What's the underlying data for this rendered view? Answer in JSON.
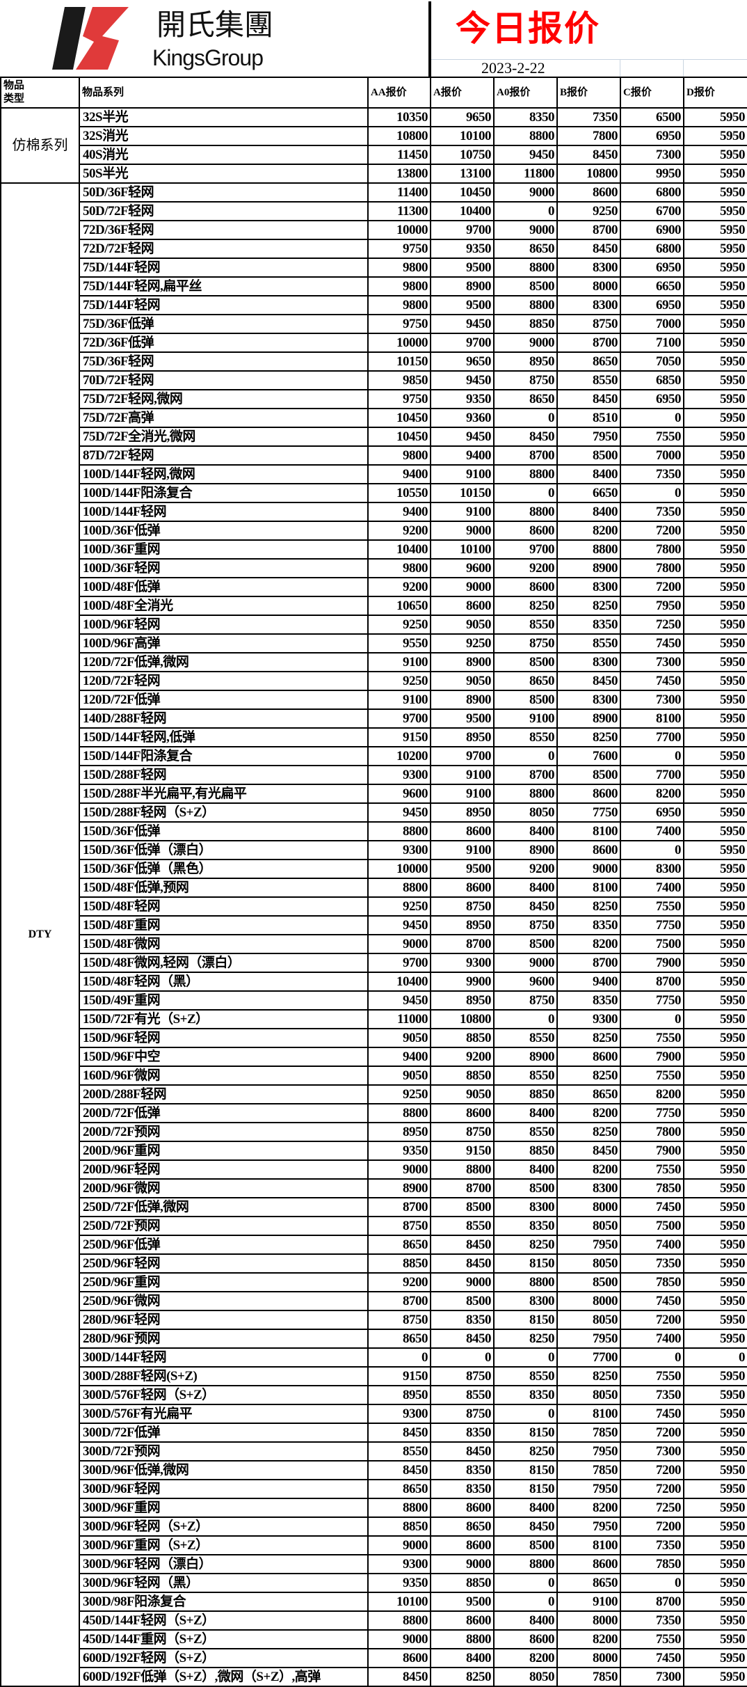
{
  "header": {
    "logo_cn": "開氏集團",
    "logo_en": "KingsGroup",
    "title": "今日报价",
    "date": "2023-2-22",
    "colors": {
      "title": "#ff0000",
      "logo_red": "#e03a3a",
      "logo_black": "#1a1a1a"
    }
  },
  "columns": {
    "type": "物品类型",
    "type_line1": "物品",
    "type_line2": "类型",
    "series": "物品系列",
    "prices": [
      "AA报价",
      "A报价",
      "A0报价",
      "B报价",
      "C报价",
      "D报价"
    ]
  },
  "groups": [
    {
      "category": "仿棉系列",
      "rows": [
        {
          "name": "32S半光",
          "prices": [
            10350,
            9650,
            8350,
            7350,
            6500,
            5950
          ]
        },
        {
          "name": "32S消光",
          "prices": [
            10800,
            10100,
            8800,
            7800,
            6950,
            5950
          ]
        },
        {
          "name": "40S消光",
          "prices": [
            11450,
            10750,
            9450,
            8450,
            7300,
            5950
          ]
        },
        {
          "name": "50S半光",
          "prices": [
            13800,
            13100,
            11800,
            10800,
            9950,
            5950
          ]
        }
      ]
    },
    {
      "category": "DTY",
      "rows": [
        {
          "name": "50D/36F轻网",
          "prices": [
            11400,
            10450,
            9000,
            8600,
            6800,
            5950
          ]
        },
        {
          "name": "50D/72F轻网",
          "prices": [
            11300,
            10400,
            0,
            9250,
            6700,
            5950
          ]
        },
        {
          "name": "72D/36F轻网",
          "prices": [
            10000,
            9700,
            9000,
            8700,
            6900,
            5950
          ]
        },
        {
          "name": "72D/72F轻网",
          "prices": [
            9750,
            9350,
            8650,
            8450,
            6800,
            5950
          ]
        },
        {
          "name": "75D/144F轻网",
          "prices": [
            9800,
            9500,
            8800,
            8300,
            6950,
            5950
          ]
        },
        {
          "name": "75D/144F轻网,扁平丝",
          "prices": [
            9800,
            8900,
            8500,
            8000,
            6650,
            5950
          ]
        },
        {
          "name": "75D/144F轻网",
          "prices": [
            9800,
            9500,
            8800,
            8300,
            6950,
            5950
          ]
        },
        {
          "name": "75D/36F低弹",
          "prices": [
            9750,
            9450,
            8850,
            8750,
            7000,
            5950
          ]
        },
        {
          "name": "72D/36F低弹",
          "prices": [
            10000,
            9700,
            9000,
            8700,
            7100,
            5950
          ]
        },
        {
          "name": "75D/36F轻网",
          "prices": [
            10150,
            9650,
            8950,
            8650,
            7050,
            5950
          ]
        },
        {
          "name": "70D/72F轻网",
          "prices": [
            9850,
            9450,
            8750,
            8550,
            6850,
            5950
          ]
        },
        {
          "name": "75D/72F轻网,微网",
          "prices": [
            9750,
            9350,
            8650,
            8450,
            6950,
            5950
          ]
        },
        {
          "name": "75D/72F高弹",
          "prices": [
            10450,
            9360,
            0,
            8510,
            0,
            5950
          ]
        },
        {
          "name": "75D/72F全消光,微网",
          "prices": [
            10450,
            9450,
            8450,
            7950,
            7550,
            5950
          ]
        },
        {
          "name": "87D/72F轻网",
          "prices": [
            9800,
            9400,
            8700,
            8500,
            7000,
            5950
          ]
        },
        {
          "name": "100D/144F轻网,微网",
          "prices": [
            9400,
            9100,
            8800,
            8400,
            7350,
            5950
          ]
        },
        {
          "name": "100D/144F阳涤复合",
          "prices": [
            10550,
            10150,
            0,
            6650,
            0,
            5950
          ]
        },
        {
          "name": "100D/144F轻网",
          "prices": [
            9400,
            9100,
            8800,
            8400,
            7350,
            5950
          ]
        },
        {
          "name": "100D/36F低弹",
          "prices": [
            9200,
            9000,
            8600,
            8200,
            7200,
            5950
          ]
        },
        {
          "name": "100D/36F重网",
          "prices": [
            10400,
            10100,
            9700,
            8800,
            7800,
            5950
          ]
        },
        {
          "name": "100D/36F轻网",
          "prices": [
            9800,
            9600,
            9200,
            8900,
            7800,
            5950
          ]
        },
        {
          "name": "100D/48F低弹",
          "prices": [
            9200,
            9000,
            8600,
            8300,
            7200,
            5950
          ]
        },
        {
          "name": "100D/48F全消光",
          "prices": [
            10650,
            8600,
            8250,
            8250,
            7950,
            5950
          ]
        },
        {
          "name": "100D/96F轻网",
          "prices": [
            9250,
            9050,
            8550,
            8350,
            7250,
            5950
          ]
        },
        {
          "name": "100D/96F高弹",
          "prices": [
            9550,
            9250,
            8750,
            8550,
            7450,
            5950
          ]
        },
        {
          "name": "120D/72F低弹,微网",
          "prices": [
            9100,
            8900,
            8500,
            8300,
            7300,
            5950
          ]
        },
        {
          "name": "120D/72F轻网",
          "prices": [
            9250,
            9050,
            8650,
            8450,
            7450,
            5950
          ]
        },
        {
          "name": "120D/72F低弹",
          "prices": [
            9100,
            8900,
            8500,
            8300,
            7300,
            5950
          ]
        },
        {
          "name": "140D/288F轻网",
          "prices": [
            9700,
            9500,
            9100,
            8900,
            8100,
            5950
          ]
        },
        {
          "name": "150D/144F轻网,低弹",
          "prices": [
            9150,
            8950,
            8550,
            8250,
            7700,
            5950
          ]
        },
        {
          "name": "150D/144F阳涤复合",
          "prices": [
            10200,
            9700,
            0,
            7600,
            0,
            5950
          ]
        },
        {
          "name": "150D/288F轻网",
          "prices": [
            9300,
            9100,
            8700,
            8500,
            7700,
            5950
          ]
        },
        {
          "name": "150D/288F半光扁平,有光扁平",
          "prices": [
            9600,
            9100,
            8800,
            8600,
            8200,
            5950
          ]
        },
        {
          "name": "150D/288F轻网（S+Z）",
          "prices": [
            9450,
            8950,
            8050,
            7750,
            6950,
            5950
          ]
        },
        {
          "name": "150D/36F低弹",
          "prices": [
            8800,
            8600,
            8400,
            8100,
            7400,
            5950
          ]
        },
        {
          "name": "150D/36F低弹（漂白）",
          "prices": [
            9300,
            9100,
            8900,
            8600,
            0,
            5950
          ]
        },
        {
          "name": "150D/36F低弹（黑色）",
          "prices": [
            10000,
            9500,
            9200,
            9000,
            8300,
            5950
          ]
        },
        {
          "name": "150D/48F低弹,预网",
          "prices": [
            8800,
            8600,
            8400,
            8100,
            7400,
            5950
          ]
        },
        {
          "name": "150D/48F轻网",
          "prices": [
            9250,
            8750,
            8450,
            8250,
            7550,
            5950
          ]
        },
        {
          "name": "150D/48F重网",
          "prices": [
            9450,
            8950,
            8750,
            8350,
            7750,
            5950
          ]
        },
        {
          "name": "150D/48F微网",
          "prices": [
            9000,
            8700,
            8500,
            8200,
            7500,
            5950
          ]
        },
        {
          "name": "150D/48F微网,轻网（漂白）",
          "prices": [
            9700,
            9300,
            9000,
            8700,
            7900,
            5950
          ]
        },
        {
          "name": "150D/48F轻网（黑）",
          "prices": [
            10400,
            9900,
            9600,
            9400,
            8700,
            5950
          ]
        },
        {
          "name": "150D/49F重网",
          "prices": [
            9450,
            8950,
            8750,
            8350,
            7750,
            5950
          ]
        },
        {
          "name": "150D/72F有光（S+Z）",
          "prices": [
            11000,
            10800,
            0,
            9300,
            0,
            5950
          ]
        },
        {
          "name": "150D/96F轻网",
          "prices": [
            9050,
            8850,
            8550,
            8250,
            7550,
            5950
          ]
        },
        {
          "name": "150D/96F中空",
          "prices": [
            9400,
            9200,
            8900,
            8600,
            7900,
            5950
          ]
        },
        {
          "name": "160D/96F微网",
          "prices": [
            9050,
            8850,
            8550,
            8250,
            7550,
            5950
          ]
        },
        {
          "name": "200D/288F轻网",
          "prices": [
            9250,
            9050,
            8850,
            8650,
            8200,
            5950
          ]
        },
        {
          "name": "200D/72F低弹",
          "prices": [
            8800,
            8600,
            8400,
            8200,
            7750,
            5950
          ]
        },
        {
          "name": "200D/72F预网",
          "prices": [
            8950,
            8750,
            8550,
            8250,
            7800,
            5950
          ]
        },
        {
          "name": "200D/96F重网",
          "prices": [
            9350,
            9150,
            8850,
            8450,
            7900,
            5950
          ]
        },
        {
          "name": "200D/96F轻网",
          "prices": [
            9000,
            8800,
            8400,
            8200,
            7550,
            5950
          ]
        },
        {
          "name": "200D/96F微网",
          "prices": [
            8900,
            8700,
            8500,
            8300,
            7850,
            5950
          ]
        },
        {
          "name": "250D/72F低弹,微网",
          "prices": [
            8700,
            8500,
            8300,
            8000,
            7450,
            5950
          ]
        },
        {
          "name": "250D/72F预网",
          "prices": [
            8750,
            8550,
            8350,
            8050,
            7500,
            5950
          ]
        },
        {
          "name": "250D/96F低弹",
          "prices": [
            8650,
            8450,
            8250,
            7950,
            7400,
            5950
          ]
        },
        {
          "name": "250D/96F轻网",
          "prices": [
            8850,
            8450,
            8150,
            8050,
            7350,
            5950
          ]
        },
        {
          "name": "250D/96F重网",
          "prices": [
            9200,
            9000,
            8800,
            8500,
            7850,
            5950
          ]
        },
        {
          "name": "250D/96F微网",
          "prices": [
            8700,
            8500,
            8300,
            8000,
            7450,
            5950
          ]
        },
        {
          "name": "280D/96F轻网",
          "prices": [
            8750,
            8350,
            8150,
            8050,
            7200,
            5950
          ]
        },
        {
          "name": "280D/96F预网",
          "prices": [
            8650,
            8450,
            8250,
            7950,
            7400,
            5950
          ]
        },
        {
          "name": "300D/144F轻网",
          "prices": [
            0,
            0,
            0,
            7700,
            0,
            0
          ]
        },
        {
          "name": "300D/288F轻网(S+Z)",
          "prices": [
            9150,
            8750,
            8550,
            8250,
            7550,
            5950
          ]
        },
        {
          "name": "300D/576F轻网（S+Z）",
          "prices": [
            8950,
            8550,
            8350,
            8050,
            7350,
            5950
          ]
        },
        {
          "name": "300D/576F有光扁平",
          "prices": [
            9300,
            8750,
            0,
            8100,
            7450,
            5950
          ]
        },
        {
          "name": "300D/72F低弹",
          "prices": [
            8450,
            8350,
            8150,
            7850,
            7200,
            5950
          ]
        },
        {
          "name": "300D/72F预网",
          "prices": [
            8550,
            8450,
            8250,
            7950,
            7300,
            5950
          ]
        },
        {
          "name": "300D/96F低弹,微网",
          "prices": [
            8450,
            8350,
            8150,
            7850,
            7200,
            5950
          ]
        },
        {
          "name": "300D/96F轻网",
          "prices": [
            8650,
            8350,
            8150,
            7950,
            7200,
            5950
          ]
        },
        {
          "name": "300D/96F重网",
          "prices": [
            8800,
            8600,
            8400,
            8200,
            7250,
            5950
          ]
        },
        {
          "name": "300D/96F轻网（S+Z）",
          "prices": [
            8850,
            8650,
            8450,
            7950,
            7200,
            5950
          ]
        },
        {
          "name": "300D/96F重网（S+Z）",
          "prices": [
            9000,
            8600,
            8500,
            8100,
            7350,
            5950
          ]
        },
        {
          "name": "300D/96F轻网（漂白）",
          "prices": [
            9300,
            9000,
            8800,
            8600,
            7850,
            5950
          ]
        },
        {
          "name": "300D/96F轻网（黑）",
          "prices": [
            9350,
            8850,
            0,
            8650,
            0,
            5950
          ]
        },
        {
          "name": "300D/98F阳涤复合",
          "prices": [
            10100,
            9500,
            0,
            9100,
            8700,
            5950
          ]
        },
        {
          "name": "450D/144F轻网（S+Z）",
          "prices": [
            8800,
            8600,
            8400,
            8000,
            7350,
            5950
          ]
        },
        {
          "name": "450D/144F重网（S+Z）",
          "prices": [
            9000,
            8800,
            8600,
            8200,
            7550,
            5950
          ]
        },
        {
          "name": "600D/192F轻网（S+Z）",
          "prices": [
            8600,
            8400,
            8200,
            8000,
            7450,
            5950
          ]
        },
        {
          "name": "600D/192F低弹（S+Z）,微网（S+Z）,高弹",
          "prices": [
            8450,
            8250,
            8050,
            7850,
            7300,
            5950
          ]
        }
      ]
    }
  ]
}
